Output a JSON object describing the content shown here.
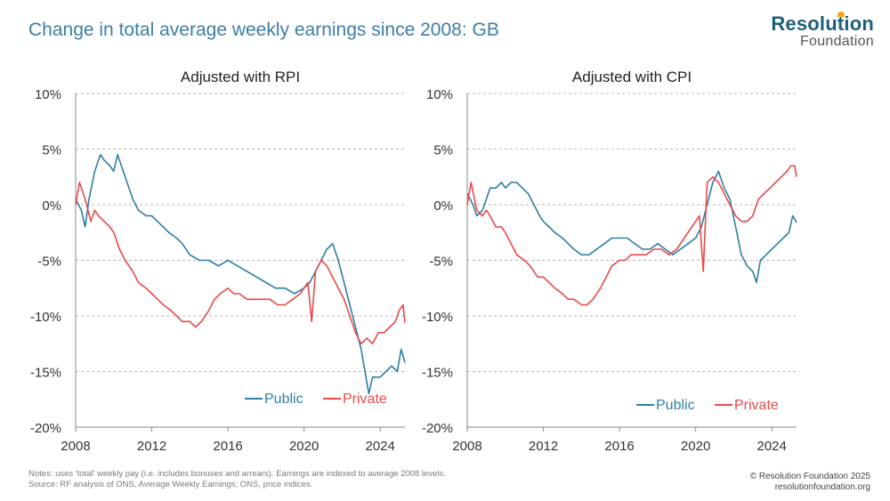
{
  "header": {
    "title": "Change in total average weekly earnings since 2008: GB",
    "logo_line1": "Resolution",
    "logo_line2": "Foundation"
  },
  "footer": {
    "notes": "Notes: uses 'total' weekly pay (i.e. includes bonuses and arrears). Earnings are indexed to average 2008 levels.",
    "source": "Source: RF analysis of ONS, Average Weekly Earnings; ONS, price indices.",
    "copyright": "© Resolution Foundation 2025",
    "website": "resolutionfoundation.org"
  },
  "colors": {
    "public": "#2e7fa3",
    "private": "#e84a4a",
    "grid": "#b5b5b5",
    "axis": "#888888"
  },
  "chart_data": [
    {
      "type": "line",
      "title": "Adjusted with RPI",
      "xlabel": "",
      "ylabel": "",
      "xlim": [
        2008,
        2025.3
      ],
      "ylim": [
        -20,
        10
      ],
      "yticks": [
        -20,
        -15,
        -10,
        -5,
        0,
        5,
        10
      ],
      "ytick_labels": [
        "-20%",
        "-15%",
        "-10%",
        "-5%",
        "0%",
        "5%",
        "10%"
      ],
      "xticks": [
        2008,
        2012,
        2016,
        2020,
        2024
      ],
      "xtick_labels": [
        "2008",
        "2012",
        "2016",
        "2020",
        "2024"
      ],
      "legend": [
        "Public",
        "Private"
      ],
      "legend_position": "bottom-right",
      "series": [
        {
          "name": "Public",
          "x": [
            2008.0,
            2008.3,
            2008.5,
            2008.7,
            2009.0,
            2009.3,
            2009.5,
            2009.8,
            2010.0,
            2010.2,
            2010.5,
            2010.8,
            2011.0,
            2011.3,
            2011.7,
            2012.0,
            2012.3,
            2012.6,
            2012.9,
            2013.3,
            2013.6,
            2014.0,
            2014.5,
            2015.0,
            2015.5,
            2016.0,
            2016.5,
            2017.0,
            2017.5,
            2018.0,
            2018.5,
            2019.0,
            2019.5,
            2020.0,
            2020.3,
            2020.6,
            2020.9,
            2021.2,
            2021.5,
            2021.8,
            2022.1,
            2022.4,
            2022.7,
            2023.0,
            2023.2,
            2023.4,
            2023.6,
            2023.8,
            2024.0,
            2024.3,
            2024.6,
            2024.9,
            2025.1,
            2025.3
          ],
          "values": [
            0.5,
            -0.5,
            -2,
            0.5,
            3,
            4.5,
            4,
            3.5,
            3,
            4.5,
            3,
            1.5,
            0.5,
            -0.5,
            -1,
            -1,
            -1.5,
            -2,
            -2.5,
            -3,
            -3.5,
            -4.5,
            -5,
            -5,
            -5.5,
            -5,
            -5.5,
            -6,
            -6.5,
            -7,
            -7.5,
            -7.5,
            -8,
            -7.5,
            -7,
            -6,
            -5,
            -4,
            -3.5,
            -5,
            -7,
            -9,
            -11,
            -13,
            -15,
            -17,
            -15.5,
            -15.5,
            -15.5,
            -15,
            -14.5,
            -15,
            -13,
            -14.2
          ]
        },
        {
          "name": "Private",
          "x": [
            2008.0,
            2008.2,
            2008.5,
            2008.8,
            2009.0,
            2009.2,
            2009.5,
            2009.8,
            2010.0,
            2010.3,
            2010.6,
            2011.0,
            2011.3,
            2011.7,
            2012.0,
            2012.3,
            2012.6,
            2013.0,
            2013.3,
            2013.6,
            2014.0,
            2014.3,
            2014.6,
            2015.0,
            2015.3,
            2015.6,
            2016.0,
            2016.3,
            2016.6,
            2017.0,
            2017.4,
            2017.8,
            2018.2,
            2018.6,
            2019.0,
            2019.4,
            2019.8,
            2020.0,
            2020.2,
            2020.4,
            2020.6,
            2020.9,
            2021.2,
            2021.5,
            2021.8,
            2022.1,
            2022.4,
            2022.7,
            2023.0,
            2023.3,
            2023.6,
            2023.9,
            2024.2,
            2024.5,
            2024.8,
            2025.0,
            2025.2,
            2025.3
          ],
          "values": [
            0,
            2,
            0.5,
            -1.5,
            -0.5,
            -1,
            -1.5,
            -2,
            -2.5,
            -4,
            -5,
            -6,
            -7,
            -7.5,
            -8,
            -8.5,
            -9,
            -9.5,
            -10,
            -10.5,
            -10.5,
            -11,
            -10.5,
            -9.5,
            -8.5,
            -8,
            -7.5,
            -8,
            -8,
            -8.5,
            -8.5,
            -8.5,
            -8.5,
            -9,
            -9,
            -8.5,
            -8,
            -7.5,
            -7,
            -10.5,
            -6,
            -5,
            -5.5,
            -6.5,
            -7.5,
            -8.5,
            -10,
            -11.5,
            -12.5,
            -12,
            -12.5,
            -11.5,
            -11.5,
            -11,
            -10.5,
            -9.5,
            -9,
            -10.6
          ]
        }
      ]
    },
    {
      "type": "line",
      "title": "Adjusted with CPI",
      "xlabel": "",
      "ylabel": "",
      "xlim": [
        2008,
        2025.3
      ],
      "ylim": [
        -20,
        10
      ],
      "yticks": [
        -20,
        -15,
        -10,
        -5,
        0,
        5,
        10
      ],
      "ytick_labels": [
        "-20%",
        "-15%",
        "-10%",
        "-5%",
        "0%",
        "5%",
        "10%"
      ],
      "xticks": [
        2008,
        2012,
        2016,
        2020,
        2024
      ],
      "xtick_labels": [
        "2008",
        "2012",
        "2016",
        "2020",
        "2024"
      ],
      "legend": [
        "Public",
        "Private"
      ],
      "legend_position": "bottom-right",
      "series": [
        {
          "name": "Public",
          "x": [
            2008.0,
            2008.3,
            2008.5,
            2008.8,
            2009.0,
            2009.2,
            2009.5,
            2009.8,
            2010.0,
            2010.3,
            2010.6,
            2010.9,
            2011.2,
            2011.5,
            2011.8,
            2012.0,
            2012.3,
            2012.6,
            2013.0,
            2013.3,
            2013.6,
            2014.0,
            2014.4,
            2014.8,
            2015.2,
            2015.6,
            2016.0,
            2016.4,
            2016.8,
            2017.2,
            2017.6,
            2018.0,
            2018.4,
            2018.8,
            2019.2,
            2019.6,
            2020.0,
            2020.3,
            2020.6,
            2020.9,
            2021.2,
            2021.5,
            2021.8,
            2022.1,
            2022.4,
            2022.7,
            2023.0,
            2023.2,
            2023.4,
            2023.7,
            2024.0,
            2024.3,
            2024.6,
            2024.9,
            2025.1,
            2025.3
          ],
          "values": [
            1,
            0,
            -1,
            -0.5,
            0.5,
            1.5,
            1.5,
            2,
            1.5,
            2,
            2,
            1.5,
            1,
            0,
            -1,
            -1.5,
            -2,
            -2.5,
            -3,
            -3.5,
            -4,
            -4.5,
            -4.5,
            -4,
            -3.5,
            -3,
            -3,
            -3,
            -3.5,
            -4,
            -4,
            -3.5,
            -4,
            -4.5,
            -4,
            -3.5,
            -3,
            -2,
            0,
            2,
            3,
            1.5,
            0.5,
            -2,
            -4.5,
            -5.5,
            -6,
            -7,
            -5,
            -4.5,
            -4,
            -3.5,
            -3,
            -2.5,
            -1,
            -1.6
          ]
        },
        {
          "name": "Private",
          "x": [
            2008.0,
            2008.2,
            2008.5,
            2008.8,
            2009.0,
            2009.2,
            2009.5,
            2009.8,
            2010.0,
            2010.3,
            2010.6,
            2011.0,
            2011.3,
            2011.7,
            2012.0,
            2012.3,
            2012.6,
            2013.0,
            2013.3,
            2013.6,
            2014.0,
            2014.3,
            2014.6,
            2015.0,
            2015.3,
            2015.6,
            2016.0,
            2016.3,
            2016.6,
            2017.0,
            2017.4,
            2017.8,
            2018.2,
            2018.6,
            2019.0,
            2019.4,
            2019.8,
            2020.0,
            2020.2,
            2020.4,
            2020.6,
            2020.9,
            2021.2,
            2021.5,
            2021.8,
            2022.1,
            2022.4,
            2022.7,
            2023.0,
            2023.3,
            2023.6,
            2023.9,
            2024.2,
            2024.5,
            2024.8,
            2025.0,
            2025.2,
            2025.3
          ],
          "values": [
            0,
            2,
            -0.5,
            -1,
            -0.5,
            -1,
            -2,
            -2,
            -2.5,
            -3.5,
            -4.5,
            -5,
            -5.5,
            -6.5,
            -6.5,
            -7,
            -7.5,
            -8,
            -8.5,
            -8.5,
            -9,
            -9,
            -8.5,
            -7.5,
            -6.5,
            -5.5,
            -5,
            -5,
            -4.5,
            -4.5,
            -4.5,
            -4,
            -4,
            -4.5,
            -4,
            -3,
            -2,
            -1.5,
            -1,
            -6,
            2,
            2.5,
            2,
            1,
            0,
            -1,
            -1.5,
            -1.5,
            -1,
            0.5,
            1,
            1.5,
            2,
            2.5,
            3,
            3.5,
            3.5,
            2.5
          ]
        }
      ]
    }
  ]
}
